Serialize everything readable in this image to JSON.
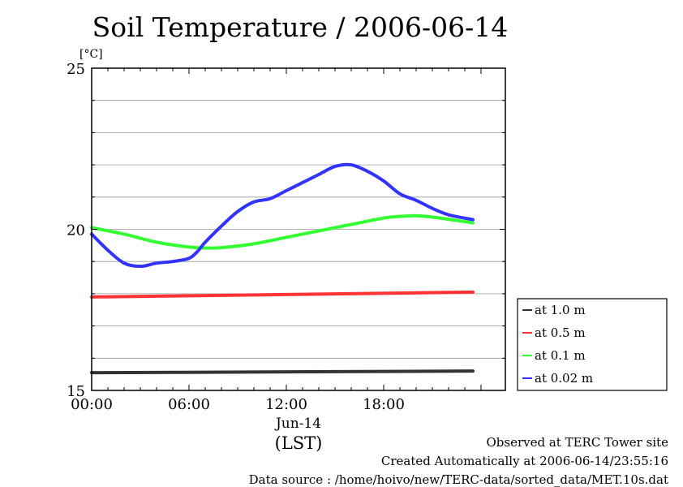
{
  "header": {
    "title": "Soil Temperature / 2006-06-14"
  },
  "footer": {
    "observed": "Observed at TERC Tower site",
    "created": "Created Automatically at 2006-06-14/23:55:16",
    "source": "Data source : /home/hoivo/new/TERC-data/sorted_data/MET.10s.dat"
  },
  "chart_data": {
    "type": "line",
    "title": "Soil Temperature / 2006-06-14",
    "ylabel": "[°C]",
    "xlabel": "(LST)",
    "date_label": "Jun-14",
    "ylim": [
      15,
      25
    ],
    "xlim": [
      0,
      23.5
    ],
    "y_ticks": [
      "15",
      "20",
      "25"
    ],
    "x_ticks": [
      "00:00",
      "06:00",
      "12:00",
      "18:00"
    ],
    "grid": true,
    "legend_position": "right",
    "series": [
      {
        "name": "at 1.0 m",
        "color": "#333333",
        "x": [
          0,
          23.5
        ],
        "y": [
          15.55,
          15.6
        ]
      },
      {
        "name": "at 0.5 m",
        "color": "#ff3333",
        "x": [
          0,
          23.5
        ],
        "y": [
          17.9,
          18.05
        ]
      },
      {
        "name": "at 0.1 m",
        "color": "#33ff33",
        "x": [
          0,
          2,
          4,
          6,
          7,
          8,
          10,
          12,
          14,
          16,
          18,
          19,
          20,
          21,
          23.5
        ],
        "y": [
          20.05,
          19.85,
          19.6,
          19.45,
          19.42,
          19.43,
          19.55,
          19.75,
          19.95,
          20.15,
          20.35,
          20.4,
          20.42,
          20.38,
          20.2
        ]
      },
      {
        "name": "at 0.02 m",
        "color": "#3333ff",
        "x": [
          0,
          1,
          2,
          3,
          4,
          5,
          6,
          6.5,
          7,
          8,
          9,
          10,
          11,
          12,
          13,
          14,
          15,
          16,
          17,
          18,
          19,
          20,
          21,
          22,
          23.5
        ],
        "y": [
          19.85,
          19.35,
          18.95,
          18.85,
          18.95,
          19.0,
          19.1,
          19.3,
          19.6,
          20.1,
          20.55,
          20.85,
          20.95,
          21.2,
          21.45,
          21.7,
          21.95,
          22.0,
          21.8,
          21.5,
          21.1,
          20.9,
          20.65,
          20.45,
          20.3
        ]
      }
    ]
  }
}
